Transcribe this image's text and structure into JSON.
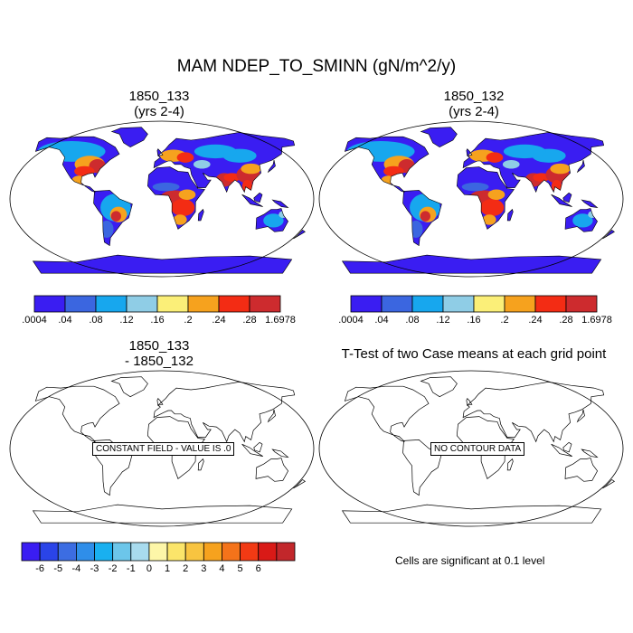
{
  "figure": {
    "title": "MAM NDEP_TO_SMINN (gN/m^2/y)",
    "sig_note": "Cells are significant at 0.1 level"
  },
  "panels": [
    {
      "title_line1": "1850_133",
      "title_line2": "(yrs 2-4)",
      "kind": "field"
    },
    {
      "title_line1": "1850_132",
      "title_line2": "(yrs 2-4)",
      "kind": "field"
    },
    {
      "title_line1": "1850_133",
      "title_line2": "- 1850_132",
      "kind": "diff",
      "message": "CONSTANT FIELD - VALUE IS .0"
    },
    {
      "title_line1": "T-Test of two Case means at each grid point",
      "title_line2": "",
      "kind": "ttest",
      "message": "NO CONTOUR DATA"
    }
  ],
  "chart_data": [
    {
      "type": "heatmap",
      "title": "1850_133 (yrs 2-4)",
      "colorbar": {
        "colors": [
          "#3a1df2",
          "#3b66e0",
          "#17a7ee",
          "#8fcde6",
          "#fbef78",
          "#f6a21e",
          "#f32c14",
          "#cd2b2e"
        ],
        "tick_labels": [
          ".0004",
          ".04",
          ".08",
          ".12",
          ".16",
          ".2",
          ".24",
          ".28",
          "1.6978"
        ]
      }
    },
    {
      "type": "heatmap",
      "title": "1850_132 (yrs 2-4)",
      "colorbar": {
        "colors": [
          "#3a1df2",
          "#3b66e0",
          "#17a7ee",
          "#8fcde6",
          "#fbef78",
          "#f6a21e",
          "#f32c14",
          "#cd2b2e"
        ],
        "tick_labels": [
          ".0004",
          ".04",
          ".08",
          ".12",
          ".16",
          ".2",
          ".24",
          ".28",
          "1.6978"
        ]
      }
    },
    {
      "type": "heatmap",
      "title": "1850_133 - 1850_132",
      "colorbar": {
        "colors": [
          "#3a1df2",
          "#2a44e8",
          "#3c6de2",
          "#2f8ee9",
          "#19b0f0",
          "#6cc6ea",
          "#a8dbee",
          "#fdf6a8",
          "#fbe56a",
          "#f8c440",
          "#f6a21e",
          "#f4731a",
          "#f23a14",
          "#d91a17",
          "#c2272b"
        ],
        "tick_labels": [
          "-6",
          "-5",
          "-4",
          "-3",
          "-2",
          "-1",
          "0",
          "1",
          "2",
          "3",
          "4",
          "5",
          "6"
        ]
      }
    }
  ]
}
